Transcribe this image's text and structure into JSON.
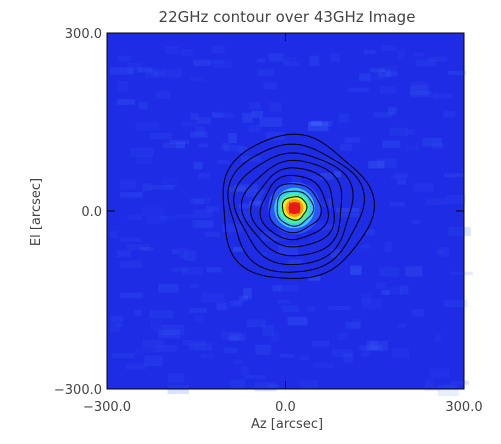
{
  "chart_data": {
    "type": "heatmap",
    "title": "22GHz contour over 43GHz Image",
    "xlabel": "Az [arcsec]",
    "ylabel": "El [arcsec]",
    "xlim": [
      -300.0,
      300.0
    ],
    "ylim": [
      -300.0,
      300.0
    ],
    "x_ticks": [
      {
        "value": -300.0,
        "label": "−300.0"
      },
      {
        "value": 0.0,
        "label": "0.0"
      },
      {
        "value": 300.0,
        "label": "300.0"
      }
    ],
    "y_ticks": [
      {
        "value": -300.0,
        "label": "−300.0"
      },
      {
        "value": 0.0,
        "label": "0.0"
      },
      {
        "value": 300.0,
        "label": "300.0"
      }
    ],
    "image_43GHz": {
      "source_center_arcsec": [
        15.0,
        5.0
      ],
      "peak_color": "#e8191e",
      "colormap": [
        "#1d27e8",
        "#2a55ff",
        "#38c8ff",
        "#48f0a0",
        "#e8f020",
        "#ff9a10",
        "#e8191e"
      ],
      "background_color": "#1e2ce6"
    },
    "contours_22GHz": {
      "center_arcsec": [
        15.0,
        5.0
      ],
      "radii_arcsec": [
        20,
        30,
        42,
        55,
        68,
        82,
        96,
        110,
        124
      ],
      "color": "#000000"
    },
    "grid": false,
    "legend": "none"
  }
}
